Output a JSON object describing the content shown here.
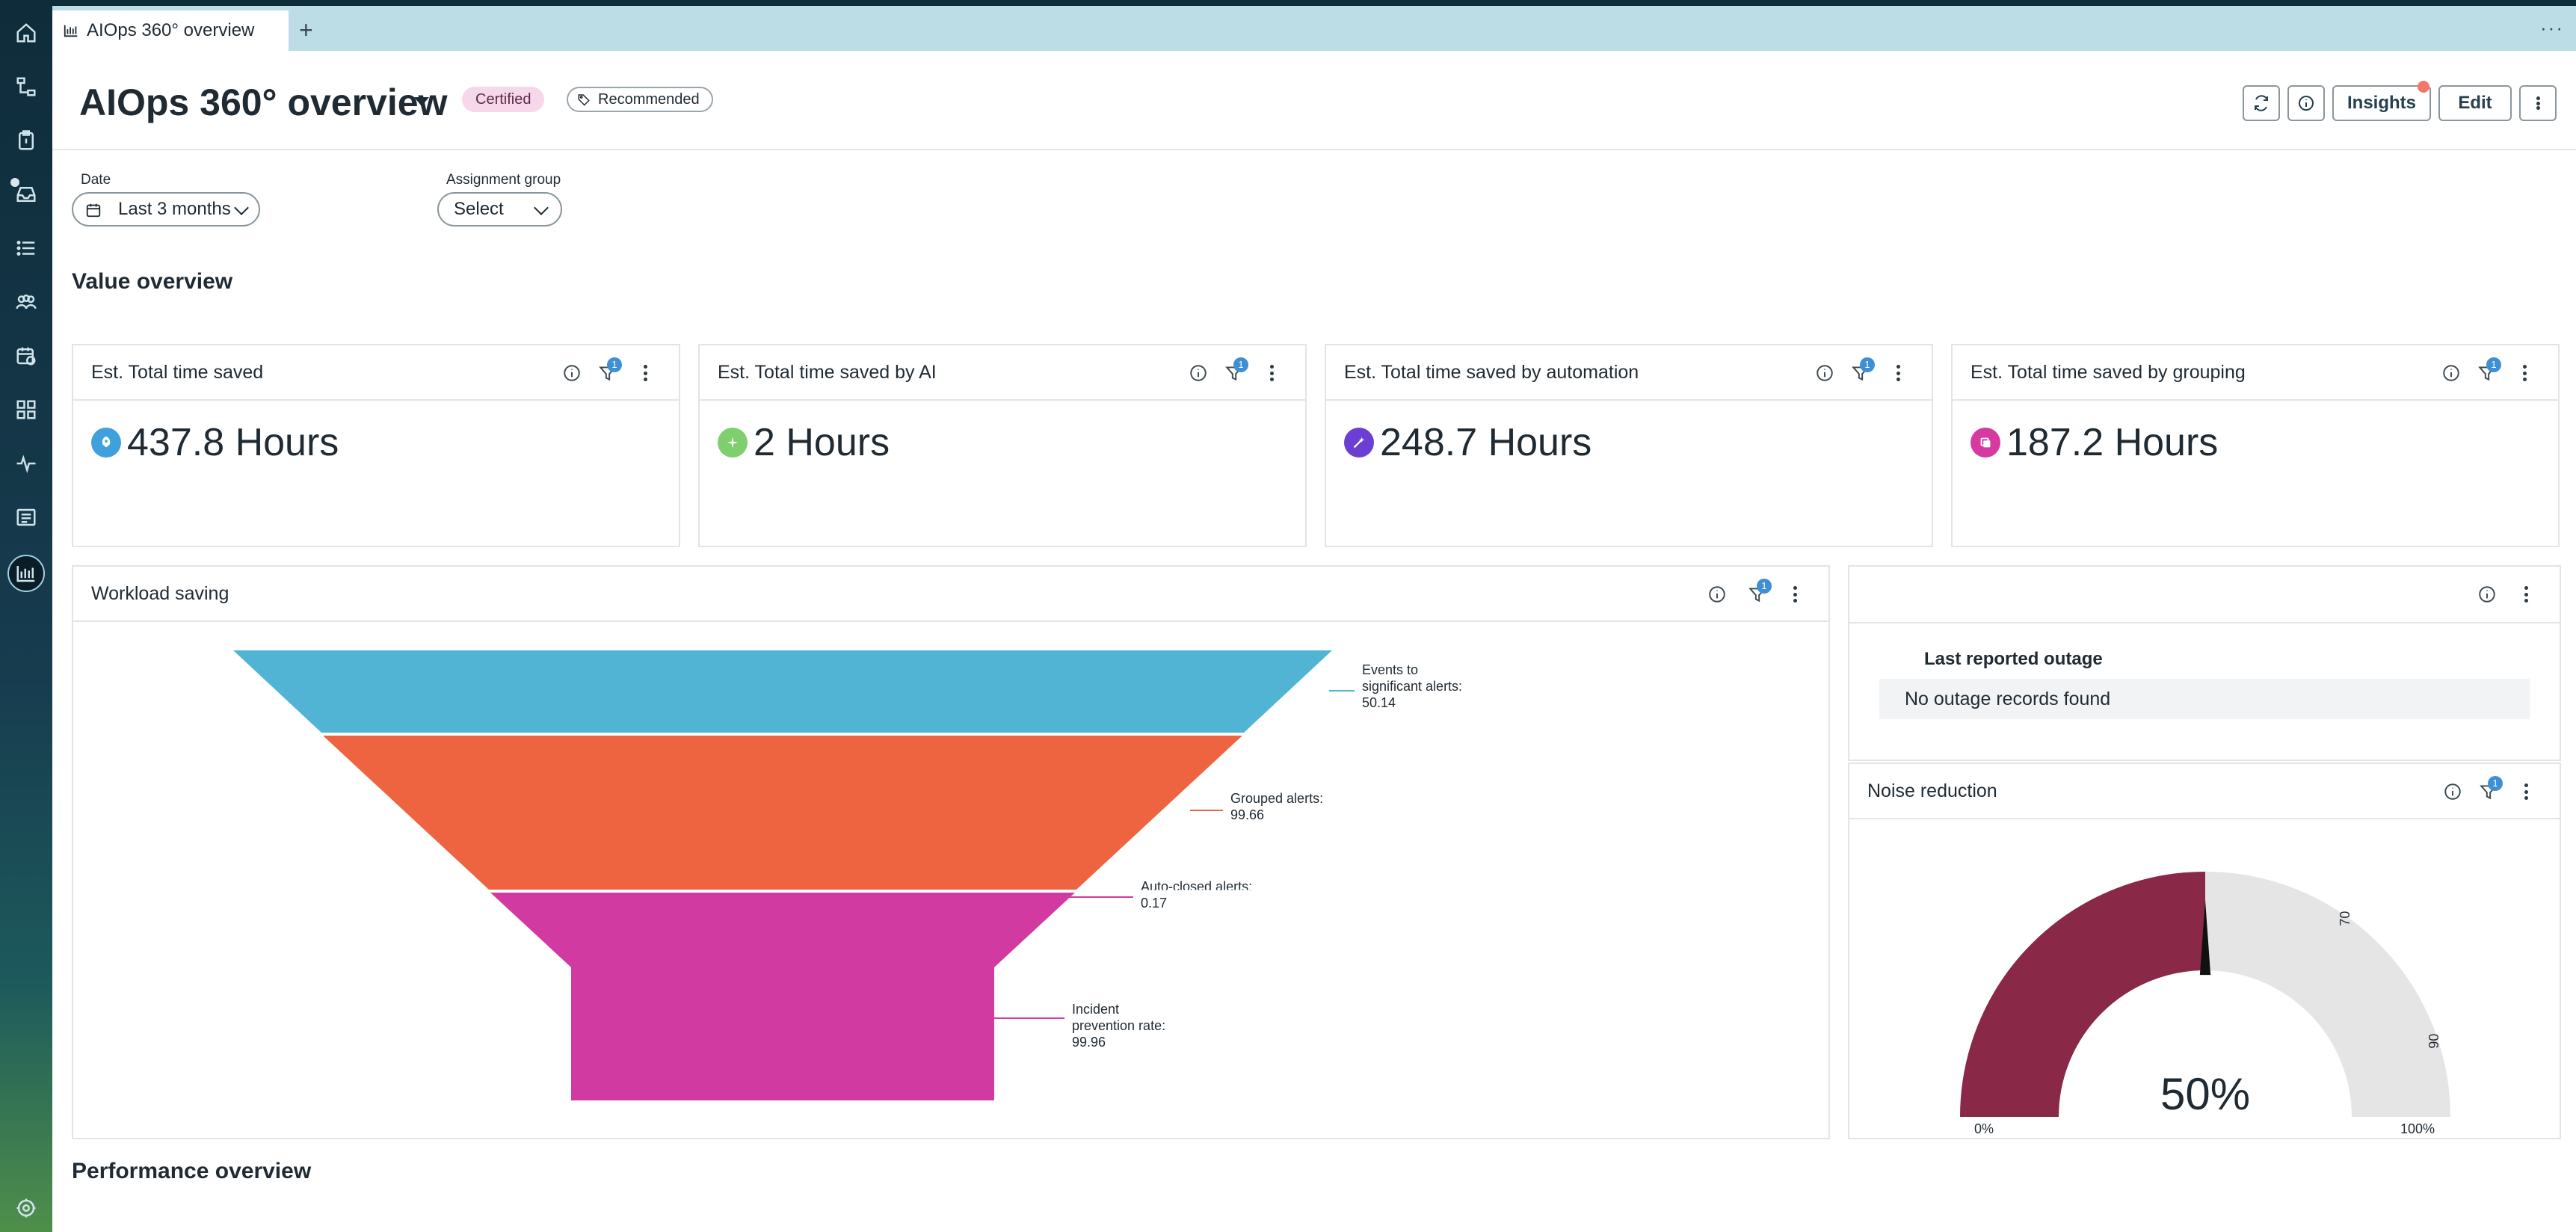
{
  "tab": {
    "label": "AIOps 360° overview",
    "add": "+",
    "more": "···"
  },
  "header": {
    "title": "AIOps 360° overview",
    "badge_certified": "Certified",
    "badge_recommended": "Recommended",
    "insights_label": "Insights",
    "edit_label": "Edit"
  },
  "filters": {
    "date_label": "Date",
    "date_value": "Last 3 months",
    "group_label": "Assignment group",
    "group_value": "Select"
  },
  "sections": {
    "value_overview": "Value overview",
    "performance_overview": "Performance overview"
  },
  "cards": [
    {
      "title": "Est. Total time saved",
      "value": "437.8 Hours",
      "filter_count": "1",
      "icon": "rocket-icon",
      "icon_color": "#3fa0dc"
    },
    {
      "title": "Est. Total time saved by AI",
      "value": "2 Hours",
      "filter_count": "1",
      "icon": "sparkle-icon",
      "icon_color": "#7fcf6e"
    },
    {
      "title": "Est. Total time saved by automation",
      "value": "248.7 Hours",
      "filter_count": "1",
      "icon": "wand-icon",
      "icon_color": "#6b3fd4"
    },
    {
      "title": "Est. Total time saved by grouping",
      "value": "187.2 Hours",
      "filter_count": "1",
      "icon": "group-icon",
      "icon_color": "#d63aa0"
    }
  ],
  "workload": {
    "title": "Workload saving",
    "filter_count": "1",
    "chart_data": {
      "type": "funnel",
      "stages": [
        {
          "label_lines": [
            "Events to",
            "significant alerts:",
            "50.14"
          ],
          "name": "Events to significant alerts",
          "value": 50.14,
          "color": "#52b4d4"
        },
        {
          "label_lines": [
            "Grouped alerts:",
            "99.66"
          ],
          "name": "Grouped alerts",
          "value": 99.66,
          "color": "#ee6440"
        },
        {
          "label_lines": [
            "Auto-closed alerts:",
            "0.17"
          ],
          "name": "Auto-closed alerts",
          "value": 0.17,
          "color": "#d13aa0"
        },
        {
          "label_lines": [
            "Incident",
            "prevention rate:",
            "99.96"
          ],
          "name": "Incident prevention rate",
          "value": 99.96,
          "color": "#d13aa0"
        }
      ]
    }
  },
  "outage": {
    "heading": "Last reported outage",
    "empty_text": "No outage records found"
  },
  "noise": {
    "title": "Noise reduction",
    "filter_count": "1",
    "chart_data": {
      "type": "gauge",
      "value": 50,
      "value_label": "50%",
      "min": 0,
      "max": 100,
      "min_label": "0%",
      "max_label": "100%",
      "thresholds": [
        {
          "from": 0,
          "to": 70,
          "color": "#8a2848"
        },
        {
          "from": 70,
          "to": 90,
          "color": "#ee6440"
        },
        {
          "from": 90,
          "to": 100,
          "color": "#4caa4c"
        }
      ],
      "threshold_labels": [
        "70",
        "90"
      ],
      "fill_color": "#8a2848",
      "track_color": "#e5e5e5"
    }
  }
}
